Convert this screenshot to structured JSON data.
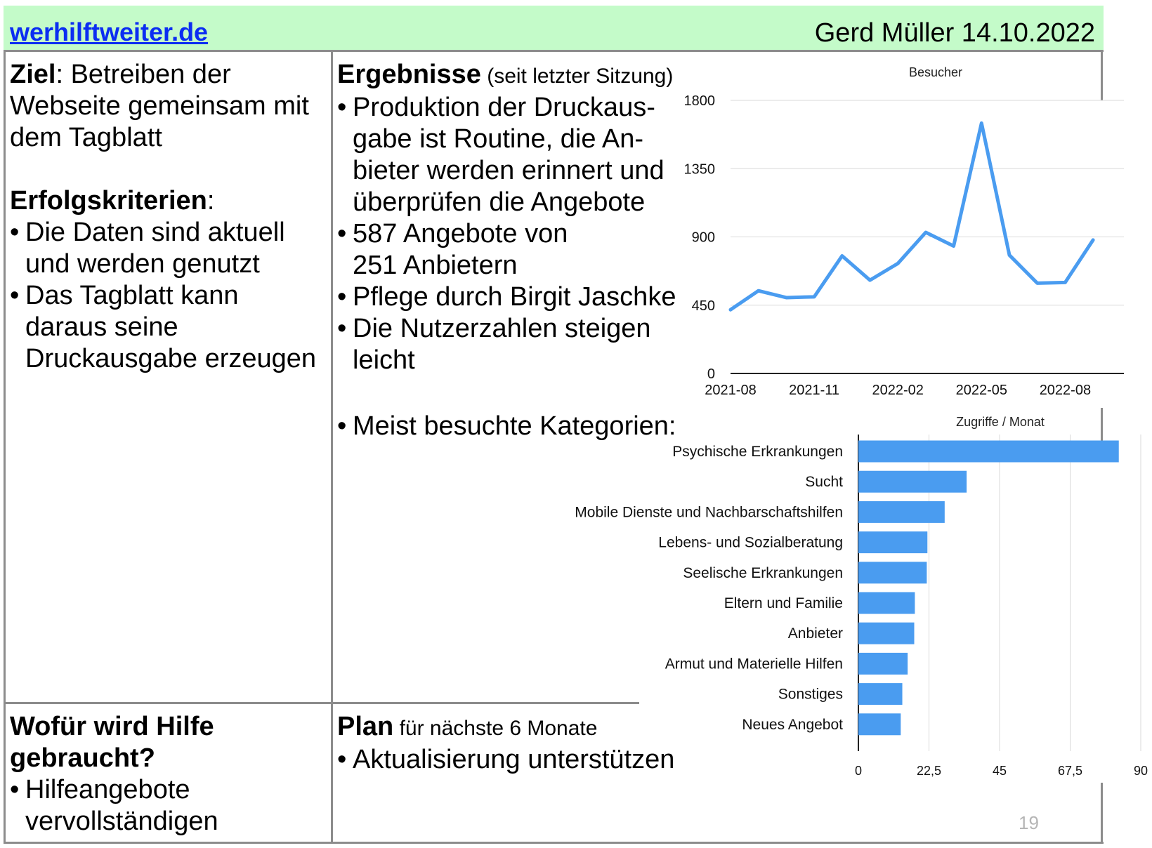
{
  "header": {
    "site_link": "werhilftweiter.de",
    "author_date": "Gerd Müller 14.10.2022"
  },
  "goal": {
    "label": "Ziel",
    "text": ": Betreiben der Webseite gemeinsam mit dem Tagblatt"
  },
  "criteria": {
    "heading": "Erfolgskriterien",
    "colon": ":",
    "items": [
      "Die Daten sind aktuell und werden genutzt",
      "Das Tagblatt kann daraus seine Druckausgabe erzeugen"
    ]
  },
  "results": {
    "heading": "Ergebnisse",
    "subheading": " (seit letzter Sitzung)",
    "items": [
      "Produktion der Druckaus-gabe ist Routine, die An-bieter werden erinnert und überprüfen die Angebote",
      "587 Angebote von 251 Anbietern",
      "Pflege durch Birgit Jaschke",
      "Die Nutzerzahlen steigen leicht"
    ],
    "categories_item": "Meist besuchte Kategorien:"
  },
  "help": {
    "heading": "Wofür wird Hilfe gebraucht?",
    "items": [
      "Hilfeangebote vervollständigen"
    ]
  },
  "plan": {
    "heading": "Plan",
    "subheading": " für nächste 6 Monate",
    "items": [
      "Aktualisierung unterstützen"
    ]
  },
  "page_number": "19",
  "colors": {
    "header_bg": "#c4fbc9",
    "link": "#0b2df2",
    "chart": "#4a9cf0",
    "border": "#8c8c8c"
  },
  "chart_data": [
    {
      "type": "line",
      "title": "Besucher",
      "x": [
        "2021-08",
        "2021-09",
        "2021-10",
        "2021-11",
        "2021-12",
        "2022-01",
        "2022-02",
        "2022-03",
        "2022-04",
        "2022-05",
        "2022-06",
        "2022-07",
        "2022-08",
        "2022-09"
      ],
      "x_tick_labels": [
        "2021-08",
        "2021-11",
        "2022-02",
        "2022-05",
        "2022-08"
      ],
      "series": [
        {
          "values": [
            420,
            545,
            500,
            505,
            775,
            615,
            725,
            930,
            840,
            1650,
            780,
            595,
            600,
            880
          ]
        }
      ],
      "ylim": [
        0,
        1800
      ],
      "y_ticks": [
        "0",
        "450",
        "900",
        "1350",
        "1800"
      ],
      "y_tick_values": [
        0,
        450,
        900,
        1350,
        1800
      ],
      "grid": true
    },
    {
      "type": "bar",
      "orientation": "horizontal",
      "title": "Zugriffe / Monat",
      "categories": [
        "Psychische Erkrankungen",
        "Sucht",
        "Mobile Dienste und Nachbarschaftshilfen",
        "Lebens- und Sozialberatung",
        "Seelische Erkrankungen",
        "Eltern und Familie",
        "Anbieter",
        "Armut und Materielle Hilfen",
        "Sonstiges",
        "Neues Angebot"
      ],
      "values": [
        83,
        34.5,
        27.5,
        22,
        21.8,
        18,
        17.8,
        15.7,
        14,
        13.5
      ],
      "xlim": [
        0,
        90
      ],
      "x_ticks": [
        "0",
        "22,5",
        "45",
        "67,5",
        "90"
      ],
      "x_tick_values": [
        0,
        22.5,
        45,
        67.5,
        90
      ],
      "grid": true
    }
  ]
}
